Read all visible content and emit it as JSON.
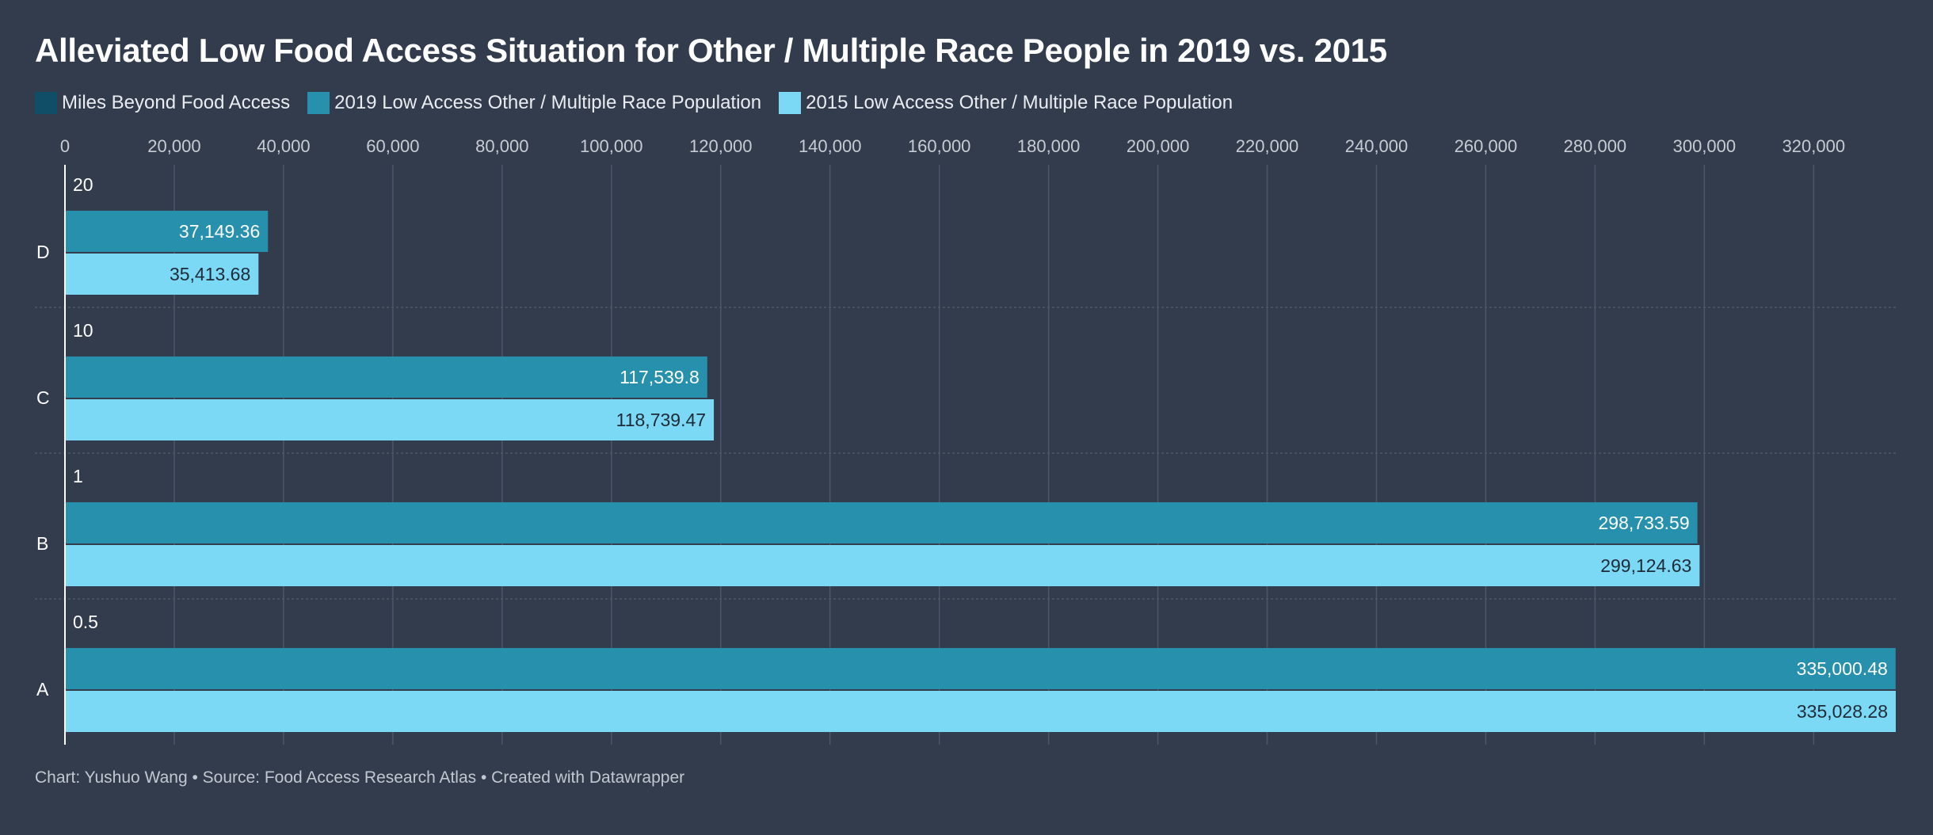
{
  "title": "Alleviated Low Food Access Situation for Other / Multiple Race People in 2019 vs. 2015",
  "legend": [
    {
      "label": "Miles Beyond Food Access",
      "color": "#0f4e66"
    },
    {
      "label": "2019 Low Access Other / Multiple Race Population",
      "color": "#2690ad"
    },
    {
      "label": "2015 Low Access Other / Multiple Race Population",
      "color": "#7cd9f5"
    }
  ],
  "footer": "Chart: Yushuo Wang • Source: Food Access Research Atlas • Created with Datawrapper",
  "colors": {
    "background": "#323c4d",
    "grid": "#4c5667",
    "axis_text": "#c7ccd4",
    "label_text": "#ffffff",
    "bar_2019": "#2690ad",
    "bar_2015": "#7cd9f5"
  },
  "chart_data": {
    "type": "bar",
    "orientation": "horizontal",
    "categories": [
      "D",
      "C",
      "B",
      "A"
    ],
    "miles_labels": [
      "20",
      "10",
      "1",
      "0.5"
    ],
    "series": [
      {
        "name": "2019 Low Access Other / Multiple Race Population",
        "values": [
          37149.36,
          117539.8,
          298733.59,
          335000.48
        ],
        "value_labels": [
          "37,149.36",
          "117,539.8",
          "298,733.59",
          "335,000.48"
        ]
      },
      {
        "name": "2015 Low Access Other / Multiple Race Population",
        "values": [
          35413.68,
          118739.47,
          299124.63,
          335028.28
        ],
        "value_labels": [
          "35,413.68",
          "118,739.47",
          "299,124.63",
          "335,028.28"
        ]
      }
    ],
    "xlim": [
      0,
      335028.28
    ],
    "ticks": [
      0,
      20000,
      40000,
      60000,
      80000,
      100000,
      120000,
      140000,
      160000,
      180000,
      200000,
      220000,
      240000,
      260000,
      280000,
      300000,
      320000
    ],
    "tick_labels": [
      "0",
      "20,000",
      "40,000",
      "60,000",
      "80,000",
      "100,000",
      "120,000",
      "140,000",
      "160,000",
      "180,000",
      "200,000",
      "220,000",
      "240,000",
      "260,000",
      "280,000",
      "300,000",
      "320,000"
    ],
    "grid": true,
    "legend_position": "top-left"
  }
}
